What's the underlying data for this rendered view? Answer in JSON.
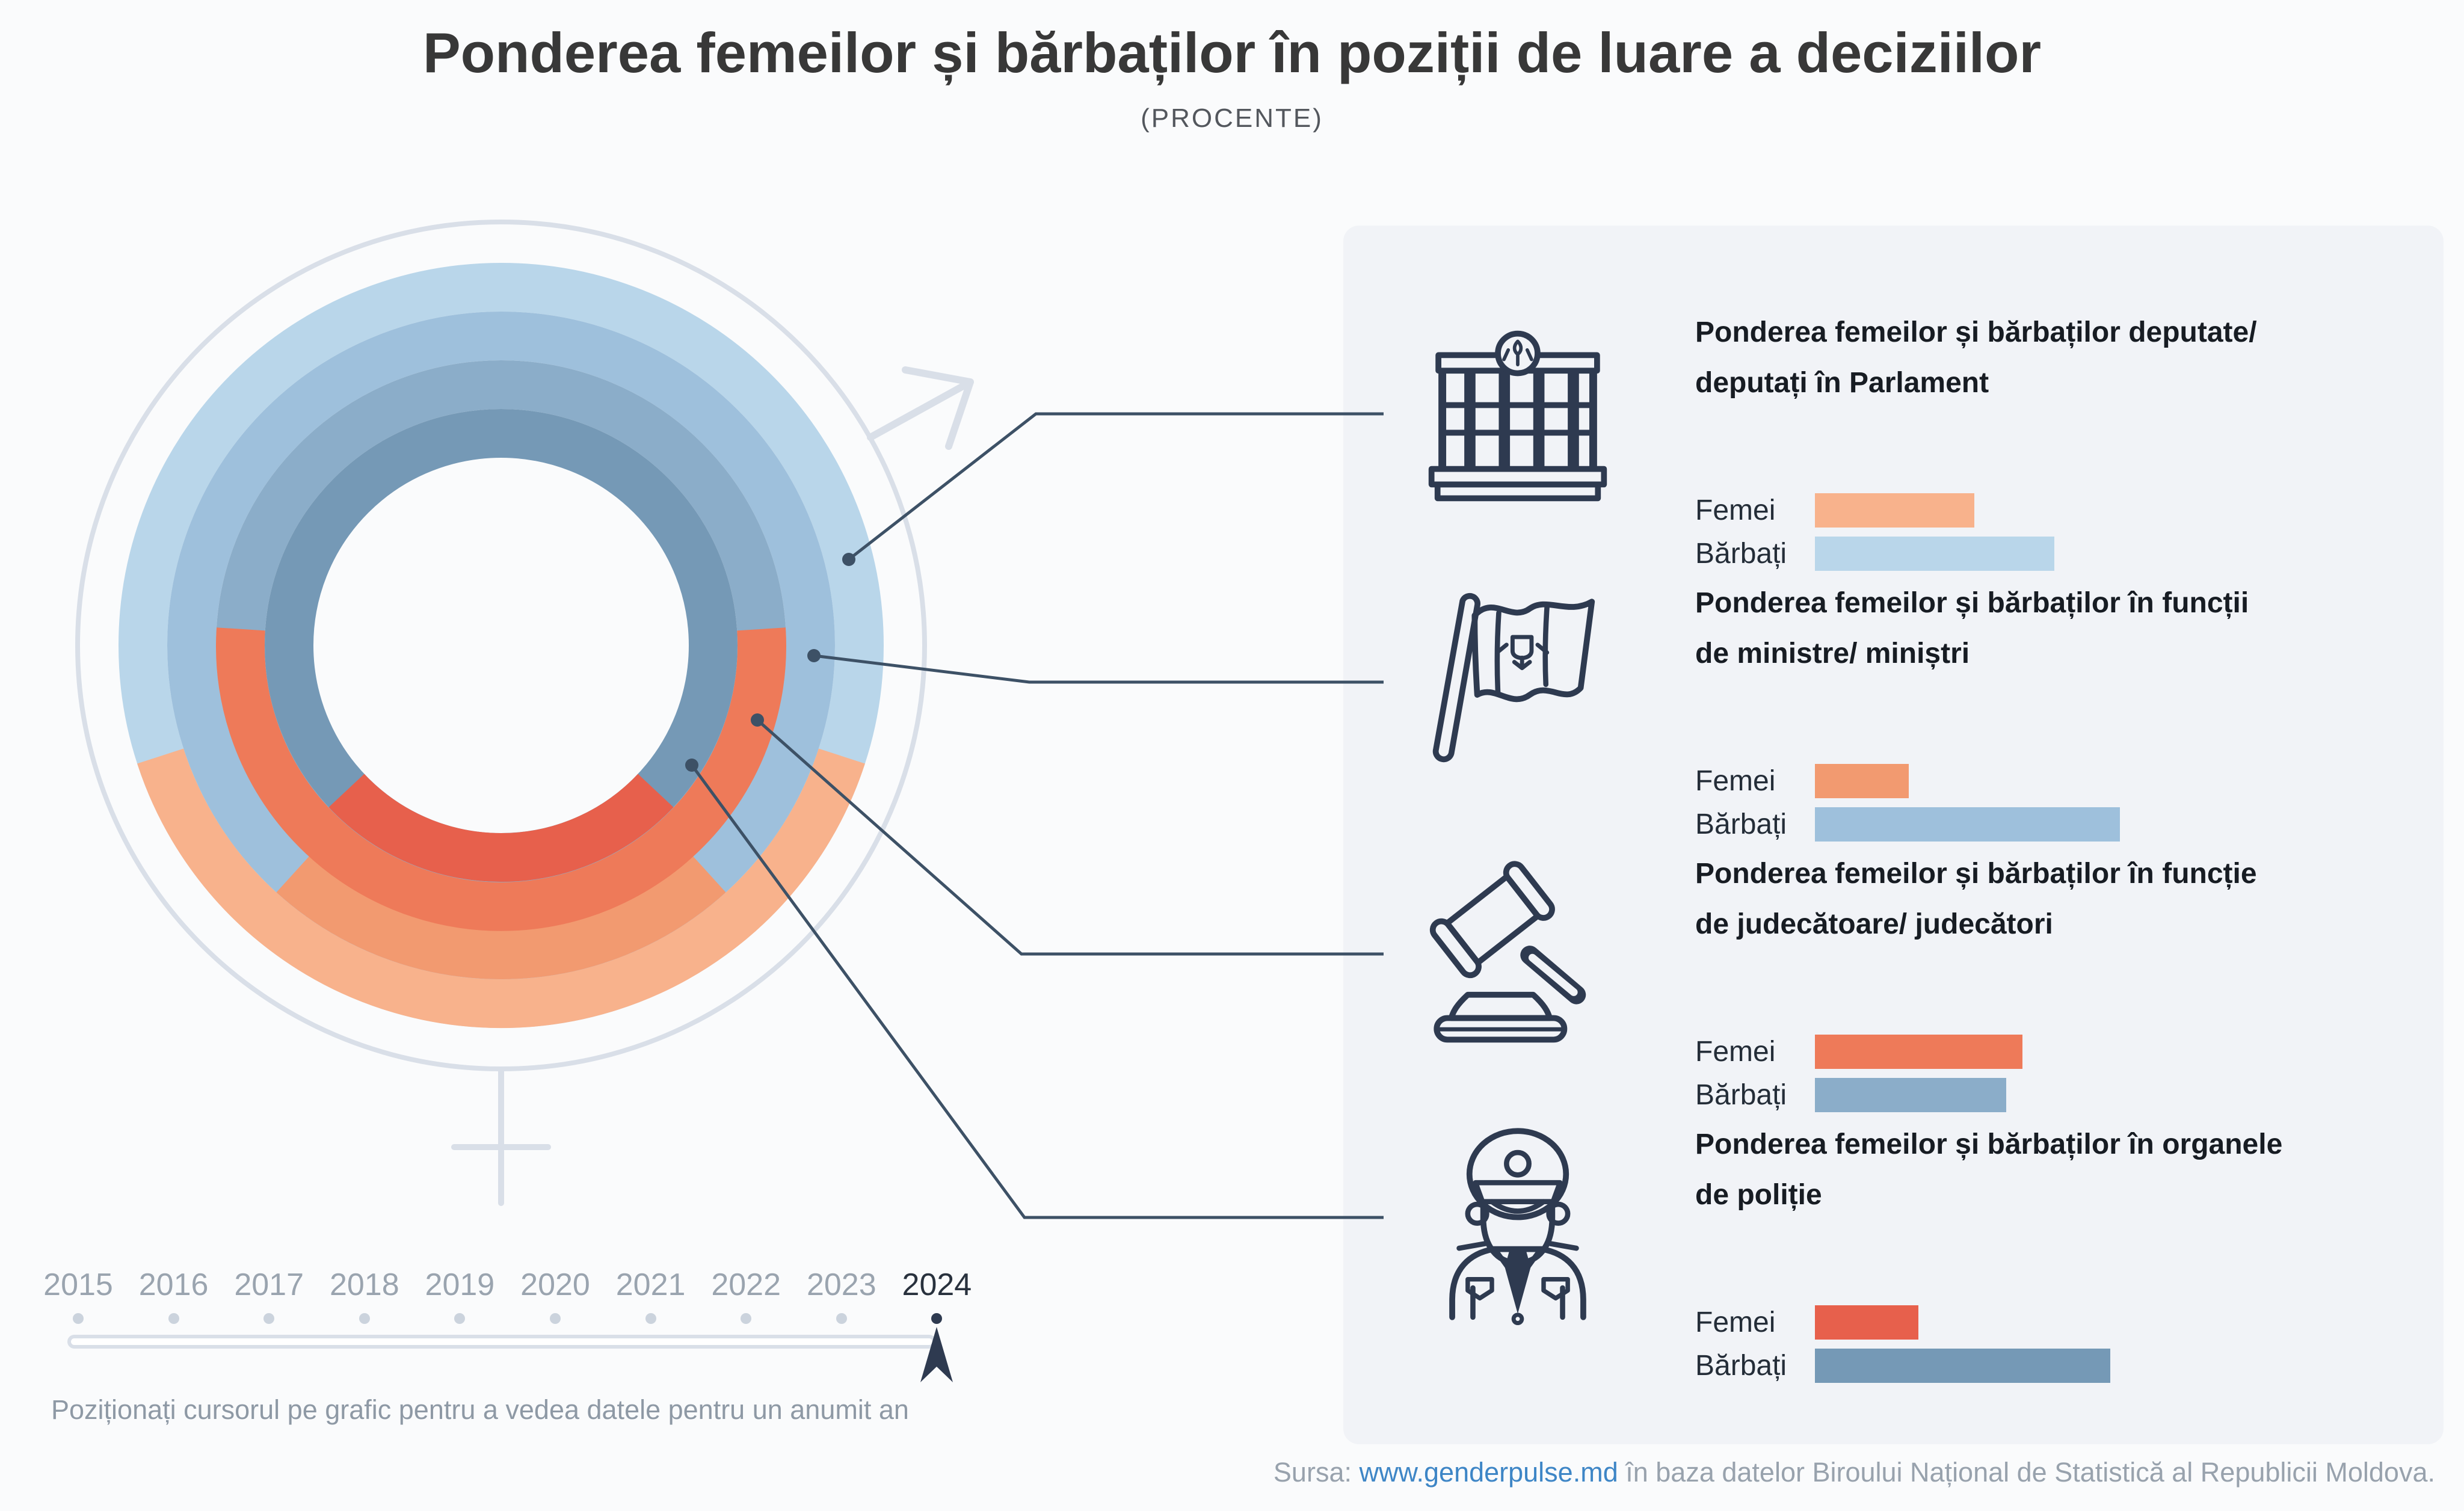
{
  "title": "Ponderea femeilor și bărbaților în poziții de luare a deciziilor",
  "subtitle": "(PROCENTE)",
  "labels": {
    "female": "Femei",
    "male": "Bărbați"
  },
  "panel": {
    "rows": [
      {
        "icon": "parliament-building-icon",
        "title1": "Ponderea femeilor și bărbaților deputate/",
        "title2": "deputați în Parlament",
        "female_value": "40,0%",
        "male_value": "60,0%"
      },
      {
        "icon": "moldova-flag-icon",
        "title1": "Ponderea femeilor și bărbaților în funcții",
        "title2": "de ministre/ miniștri",
        "female_value": "23,5%",
        "male_value": "76,5%"
      },
      {
        "icon": "gavel-icon",
        "title1": "Ponderea femeilor și bărbaților în funcție",
        "title2": "de judecătoare/ judecători",
        "female_value": "52,0%",
        "male_value": "48,0%"
      },
      {
        "icon": "police-officer-icon",
        "title1": "Ponderea femeilor și bărbaților în organele",
        "title2": "de poliție",
        "female_value": "26,0%",
        "male_value": "74,0%"
      }
    ]
  },
  "chart_data": {
    "type": "donut",
    "title": "Ponderea femeilor și bărbaților în poziții de luare a deciziilor",
    "unit": "procente",
    "selected_year": "2024",
    "legend": {
      "female": "Femei",
      "male": "Bărbați"
    },
    "rings_outer_to_inner": [
      {
        "category": "Deputate/ deputați în Parlament",
        "female": 40.0,
        "male": 60.0,
        "female_color": "#F8B28C",
        "male_color": "#B9D6EA"
      },
      {
        "category": "Funcții de ministre/ miniștri",
        "female": 23.5,
        "male": 76.5,
        "female_color": "#F29A70",
        "male_color": "#9EC0DC"
      },
      {
        "category": "Funcție de judecătoare/ judecători",
        "female": 52.0,
        "male": 48.0,
        "female_color": "#EE7A59",
        "male_color": "#8BADC9"
      },
      {
        "category": "Organele de poliție",
        "female": 26.0,
        "male": 74.0,
        "female_color": "#E7604C",
        "male_color": "#7599B6"
      }
    ]
  },
  "timeline": {
    "years": [
      "2015",
      "2016",
      "2017",
      "2018",
      "2019",
      "2020",
      "2021",
      "2022",
      "2023",
      "2024"
    ],
    "selected_year": "2024",
    "hint": "Poziționați cursorul pe grafic pentru a vedea datele pentru un anumit an"
  },
  "footer": {
    "prefix": "Sursa:",
    "link": "www.genderpulse.md",
    "suffix": "în baza datelor Biroului Național de Statistică al Republicii Moldova."
  }
}
